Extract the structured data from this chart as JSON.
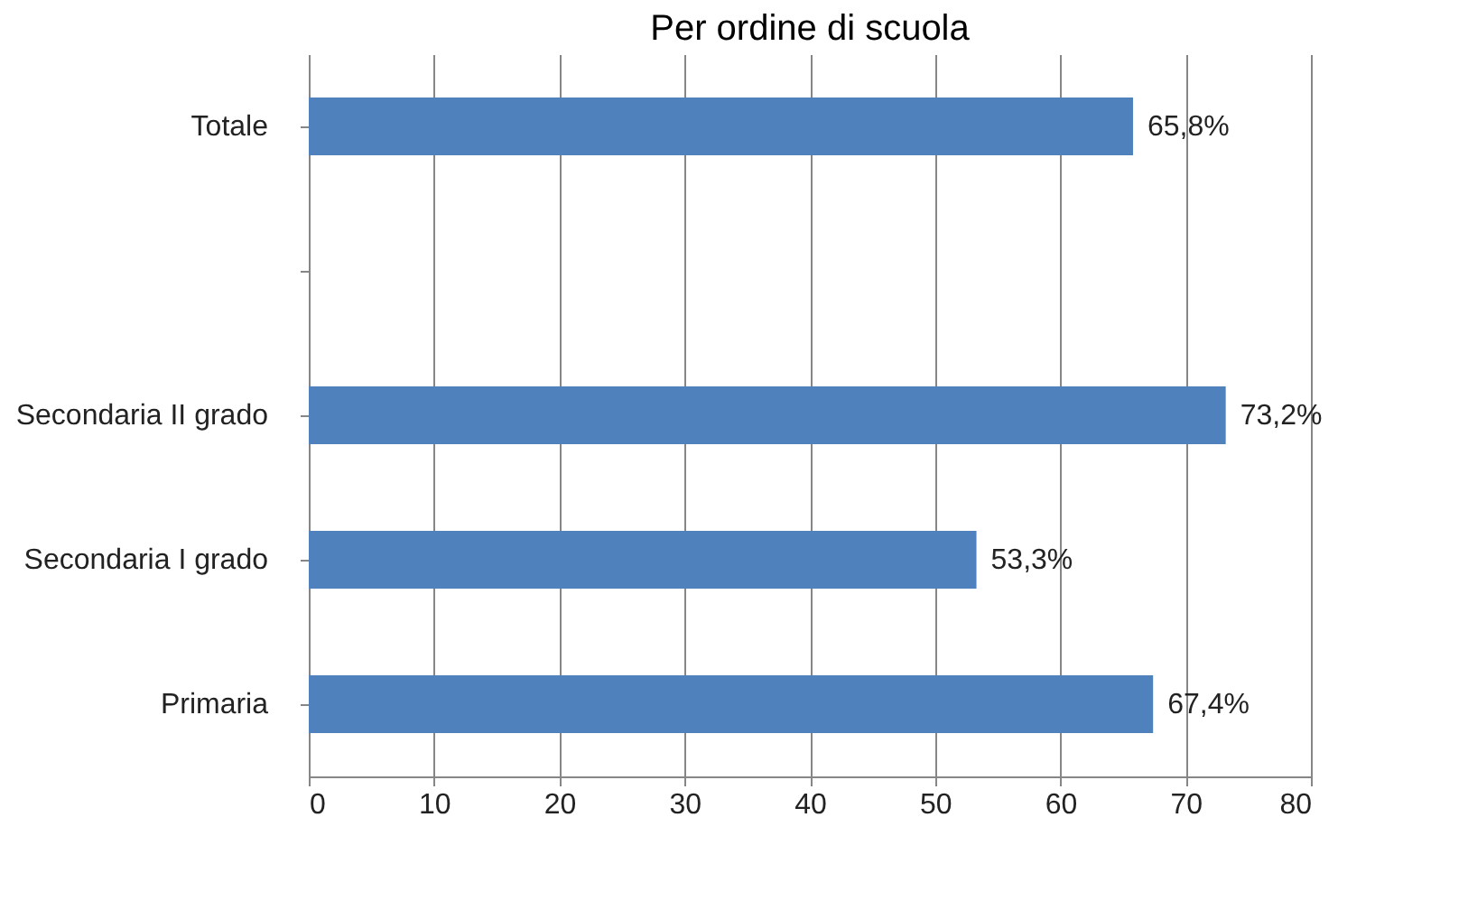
{
  "chart_data": {
    "type": "bar",
    "orientation": "horizontal",
    "title": "Per ordine di scuola",
    "categories": [
      "Totale",
      null,
      "Secondaria II grado",
      "Secondaria I grado",
      "Primaria"
    ],
    "values": [
      65.8,
      null,
      73.2,
      53.3,
      67.4
    ],
    "value_labels": [
      "65,8%",
      null,
      "73,2%",
      "53,3%",
      "67,4%"
    ],
    "color": "#4f81bd",
    "xlim": [
      0,
      80
    ],
    "xticks": [
      0,
      10,
      20,
      30,
      40,
      50,
      60,
      70,
      80
    ],
    "grid": "x"
  }
}
